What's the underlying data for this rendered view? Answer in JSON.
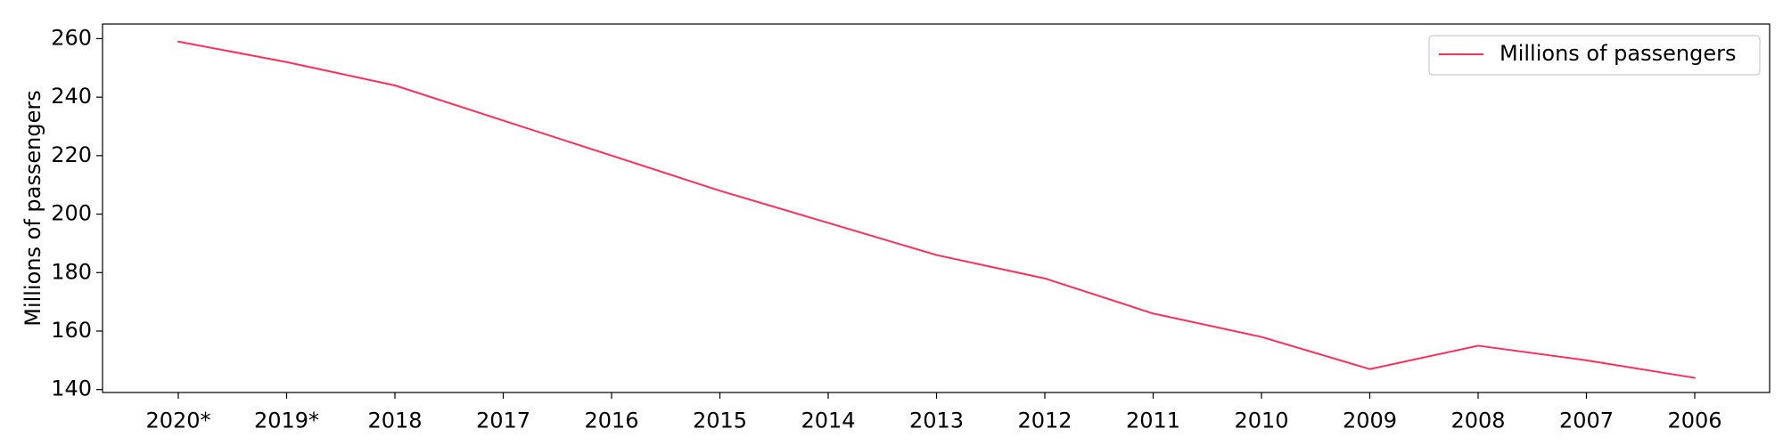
{
  "chart_data": {
    "type": "line",
    "categories": [
      "2020*",
      "2019*",
      "2018",
      "2017",
      "2016",
      "2015",
      "2014",
      "2013",
      "2012",
      "2011",
      "2010",
      "2009",
      "2008",
      "2007",
      "2006"
    ],
    "series": [
      {
        "name": "Millions of passengers",
        "color": "#ff2e5b",
        "values": [
          259,
          252,
          244,
          232,
          220,
          208,
          197,
          186,
          178,
          166,
          158,
          147,
          155,
          150,
          144
        ]
      }
    ],
    "title": "",
    "xlabel": "",
    "ylabel": "Millions of passengers",
    "ylim": [
      139,
      265
    ],
    "yticks": [
      140,
      160,
      180,
      200,
      220,
      240,
      260
    ],
    "grid": false,
    "legend_position": "top-right"
  }
}
